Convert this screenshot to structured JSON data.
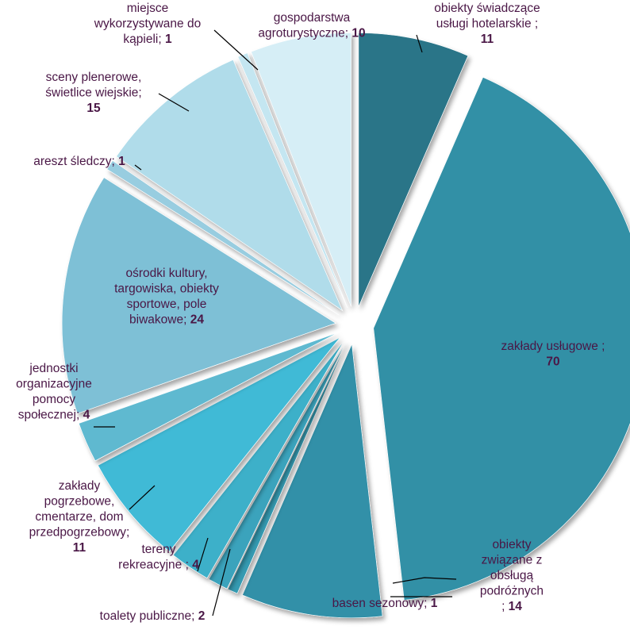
{
  "chart_data": {
    "type": "pie",
    "exploded": true,
    "title": "",
    "legend": "none",
    "data_labels": "category; value",
    "slices": [
      {
        "label": "obiekty świadczące usługi hotelarskie",
        "value": 11,
        "color": "#2a7488"
      },
      {
        "label": "zakłady usługowe",
        "value": 70,
        "color": "#3190a6"
      },
      {
        "label": "obiekty związane z obsługą podróżnych",
        "value": 14,
        "color": "#3290a8"
      },
      {
        "label": "basen sezonowy",
        "value": 1,
        "color": "#349bb2"
      },
      {
        "label": "toalety publiczne",
        "value": 2,
        "color": "#3aa3bc"
      },
      {
        "label": "tereny rekreacyjne",
        "value": 4,
        "color": "#3cb0c9"
      },
      {
        "label": "zakłady pogrzebowe, cmentarze, dom przedpogrzebowy",
        "value": 11,
        "color": "#3fbad6"
      },
      {
        "label": "jednostki organizacyjne pomocy społecznej",
        "value": 4,
        "color": "#5fb9d0"
      },
      {
        "label": "ośrodki kultury, targowiska, obiekty sportowe, pole biwakowe",
        "value": 24,
        "color": "#7ec0d6"
      },
      {
        "label": "areszt śledczy",
        "value": 1,
        "color": "#98cde0"
      },
      {
        "label": "sceny plenerowe, świetlice wiejskie",
        "value": 15,
        "color": "#b0dcea"
      },
      {
        "label": "miejsce wykorzystywane do kąpieli",
        "value": 1,
        "color": "#c4e6f1"
      },
      {
        "label": "gospodarstwa agroturystyczne",
        "value": 10,
        "color": "#d6eef6"
      }
    ]
  }
}
